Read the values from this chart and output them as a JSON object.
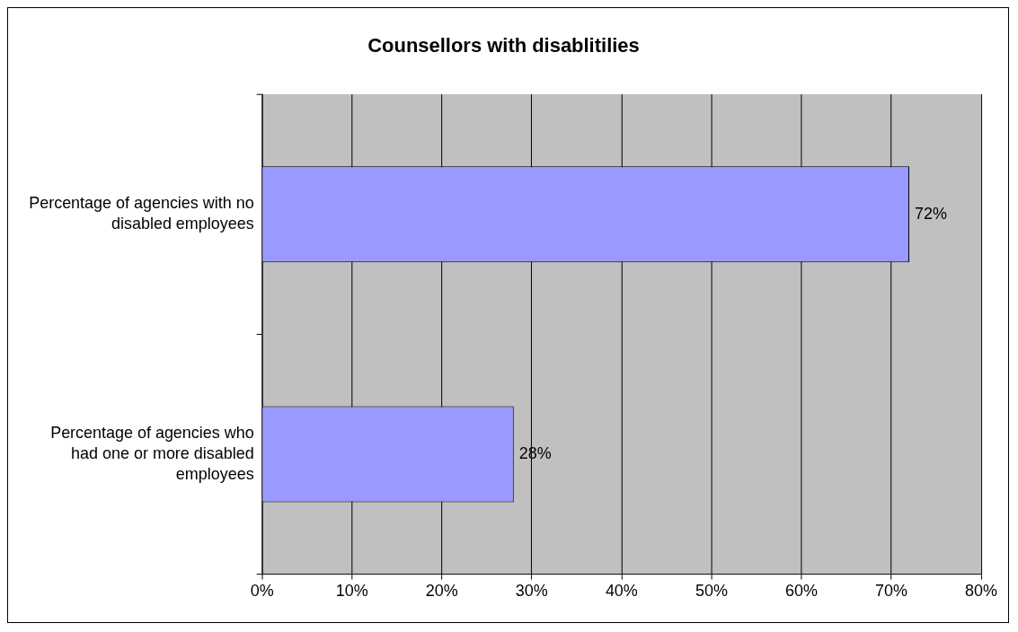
{
  "chart_data": {
    "type": "bar",
    "orientation": "horizontal",
    "title": "Counsellors with disablitilies",
    "categories": [
      "Percentage of agencies with no disabled employees",
      "Percentage of agencies who had one or more disabled employees"
    ],
    "values": [
      72,
      28
    ],
    "color": "#9999ff",
    "value_labels": [
      "72%",
      "28%"
    ],
    "xlim": [
      0,
      80
    ],
    "xticks": [
      {
        "value": 0,
        "label": "0%"
      },
      {
        "value": 10,
        "label": "10%"
      },
      {
        "value": 20,
        "label": "20%"
      },
      {
        "value": 30,
        "label": "30%"
      },
      {
        "value": 40,
        "label": "40%"
      },
      {
        "value": 50,
        "label": "50%"
      },
      {
        "value": 60,
        "label": "60%"
      },
      {
        "value": 70,
        "label": "70%"
      },
      {
        "value": 80,
        "label": "80%"
      }
    ],
    "grid": "x",
    "legend": false
  }
}
